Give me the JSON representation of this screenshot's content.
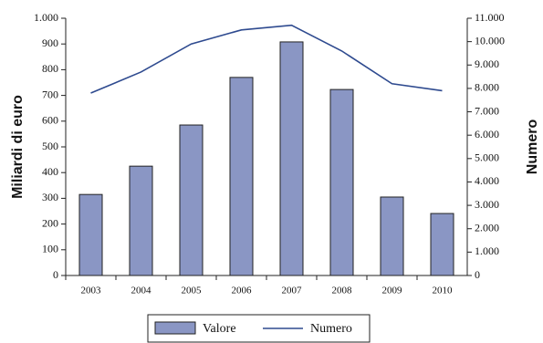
{
  "chart_data": {
    "type": "bar",
    "y_label": "Miliardi di euro",
    "y2_label": "Numero",
    "categories": [
      "2003",
      "2004",
      "2005",
      "2006",
      "2007",
      "2008",
      "2009",
      "2010"
    ],
    "series": [
      {
        "name": "Valore",
        "type": "bar",
        "axis": "y",
        "color": "#8a96c4",
        "values": [
          315,
          425,
          585,
          770,
          908,
          723,
          305,
          241
        ]
      },
      {
        "name": "Numero",
        "type": "line",
        "axis": "y2",
        "color": "#2e4a8f",
        "values": [
          7800,
          8700,
          9900,
          10500,
          10700,
          9600,
          8200,
          7900
        ]
      }
    ],
    "ylim": [
      0,
      1000
    ],
    "yticks": [
      0,
      100,
      200,
      300,
      400,
      500,
      600,
      700,
      800,
      900,
      {
        "value": 1000,
        "label": "1.000"
      }
    ],
    "y2lim": [
      0,
      11000
    ],
    "y2ticks": [
      0,
      {
        "value": 1000,
        "label": "1.000"
      },
      {
        "value": 2000,
        "label": "2.000"
      },
      {
        "value": 3000,
        "label": "3.000"
      },
      {
        "value": 4000,
        "label": "4.000"
      },
      {
        "value": 5000,
        "label": "5.000"
      },
      {
        "value": 6000,
        "label": "6.000"
      },
      {
        "value": 7000,
        "label": "7.000"
      },
      {
        "value": 8000,
        "label": "8.000"
      },
      {
        "value": 9000,
        "label": "9.000"
      },
      {
        "value": 10000,
        "label": "10.000"
      },
      {
        "value": 11000,
        "label": "11.000"
      }
    ],
    "grid": false,
    "legend": "bottom"
  }
}
